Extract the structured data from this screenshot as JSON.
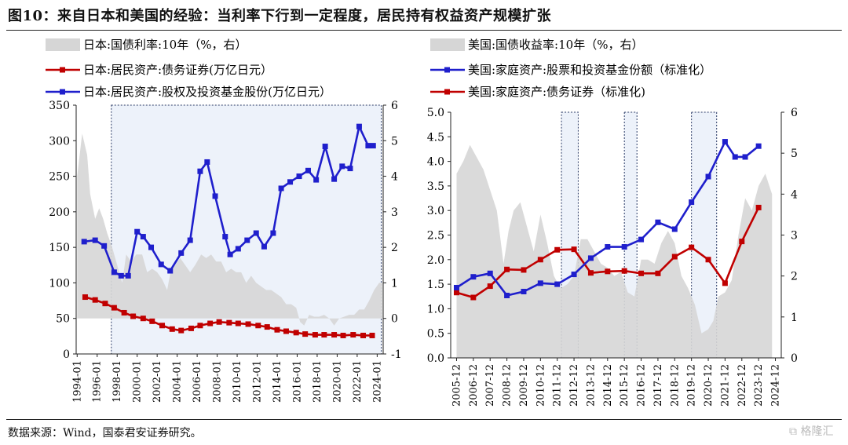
{
  "title": "图10：来自日本和美国的经验：当利率下行到一定程度，居民持有权益资产规模扩张",
  "source": "数据来源：Wind，国泰君安证券研究。",
  "watermark": "格隆汇",
  "colors": {
    "red": "#c00000",
    "blue": "#1f1fcc",
    "gray": "#d6d6d6",
    "highlight": "#edf2fa",
    "dash": "#2a3a66"
  },
  "chart_data": [
    {
      "type": "line",
      "id": "japan",
      "legend": [
        "日本:国债利率:10年（%，右）",
        "日本:居民资产:债务证券(万亿日元）",
        "日本:居民资产:股权及投资基金股份(万亿日元）"
      ],
      "x_ticks": [
        "1994-01",
        "1996-01",
        "1998-01",
        "2000-01",
        "2002-01",
        "2004-01",
        "2006-01",
        "2008-01",
        "2010-01",
        "2012-01",
        "2014-01",
        "2016-01",
        "2018-01",
        "2020-01",
        "2022-01",
        "2024-01"
      ],
      "y_left": {
        "min": 0,
        "max": 350,
        "ticks": [
          0,
          50,
          100,
          150,
          200,
          250,
          300,
          350
        ]
      },
      "y_right": {
        "min": -1,
        "max": 6,
        "ticks": [
          -1,
          0,
          1,
          2,
          3,
          4,
          5,
          6
        ]
      },
      "shaded_period": [
        "1997-06",
        "2024-06"
      ],
      "series": [
        {
          "name": "日本:居民资产:债务证券(万亿日元）",
          "color": "red",
          "axis": "left",
          "x": [
            1994.8,
            1995.8,
            1996.8,
            1997.7,
            1998.7,
            1999.6,
            2000.6,
            2001.5,
            2002.5,
            2003.5,
            2004.4,
            2005.4,
            2006.3,
            2007.3,
            2008.2,
            2009.2,
            2010.1,
            2011.1,
            2012.1,
            2013.0,
            2014.0,
            2014.9,
            2015.9,
            2016.8,
            2017.8,
            2018.7,
            2019.7,
            2020.6,
            2021.6,
            2022.6,
            2023.5
          ],
          "y": [
            80,
            76,
            71,
            65,
            58,
            53,
            50,
            46,
            40,
            35,
            33,
            36,
            40,
            43,
            45,
            44,
            43,
            42,
            40,
            38,
            34,
            32,
            30,
            28,
            27,
            27,
            27,
            26,
            27,
            26,
            26
          ]
        },
        {
          "name": "日本:居民资产:股权及投资基金股份(万亿日元）",
          "color": "blue",
          "axis": "left",
          "x": [
            1994.7,
            1995.8,
            1996.7,
            1997.7,
            1998.4,
            1999.1,
            2000.0,
            2000.6,
            2001.4,
            2002.4,
            2003.3,
            2004.4,
            2005.3,
            2006.3,
            2007.0,
            2007.8,
            2008.8,
            2009.3,
            2010.1,
            2011.0,
            2011.9,
            2012.7,
            2013.6,
            2014.4,
            2015.3,
            2016.2,
            2017.1,
            2017.9,
            2018.8,
            2019.7,
            2020.5,
            2021.3,
            2022.2,
            2023.1,
            2023.6
          ],
          "y": [
            158,
            160,
            152,
            115,
            110,
            110,
            172,
            165,
            150,
            126,
            117,
            142,
            160,
            257,
            270,
            222,
            165,
            140,
            148,
            160,
            170,
            151,
            170,
            233,
            242,
            250,
            258,
            245,
            292,
            246,
            264,
            261,
            320,
            293,
            293
          ]
        },
        {
          "name": "日本:国债利率:10年（%，右）",
          "color": "gray",
          "axis": "right",
          "x": [
            1994,
            1994.5,
            1995,
            1995.3,
            1995.8,
            1996.2,
            1996.6,
            1997,
            1997.5,
            1998,
            1998.5,
            1998.9,
            1999.4,
            1999.9,
            2000.5,
            2001,
            2001.5,
            2002,
            2002.5,
            2003,
            2003.4,
            2003.8,
            2004.3,
            2004.8,
            2005.3,
            2005.8,
            2006.4,
            2006.9,
            2007.4,
            2007.9,
            2008.4,
            2008.9,
            2009.4,
            2009.9,
            2010.4,
            2010.9,
            2011.4,
            2011.9,
            2012.4,
            2012.9,
            2013.4,
            2013.9,
            2014.4,
            2014.9,
            2015.4,
            2015.9,
            2016.3,
            2016.7,
            2017.2,
            2017.7,
            2018.2,
            2018.7,
            2019.2,
            2019.7,
            2020.2,
            2020.7,
            2021.2,
            2021.7,
            2022.2,
            2022.7,
            2023.2,
            2023.7,
            2024.2,
            2024.5
          ],
          "y": [
            4.0,
            5.2,
            4.6,
            3.5,
            2.8,
            3.1,
            2.8,
            2.4,
            2.0,
            1.5,
            1.0,
            1.8,
            1.6,
            1.8,
            1.8,
            1.3,
            1.4,
            1.3,
            1.1,
            0.8,
            1.4,
            1.5,
            1.7,
            1.5,
            1.3,
            1.5,
            1.8,
            1.7,
            1.8,
            1.6,
            1.6,
            1.3,
            1.4,
            1.3,
            1.3,
            1.0,
            1.2,
            1.0,
            0.9,
            0.8,
            0.8,
            0.7,
            0.6,
            0.4,
            0.4,
            0.3,
            -0.1,
            -0.2,
            0.1,
            0.05,
            0.05,
            0.1,
            0.0,
            -0.2,
            0.0,
            0.05,
            0.1,
            0.1,
            0.25,
            0.25,
            0.5,
            0.8,
            1.0,
            1.0
          ]
        }
      ]
    },
    {
      "type": "line",
      "id": "us",
      "legend": [
        "美国:国债收益率:10年（%，右）",
        "美国:家庭资产:股票和投资基金份额（标准化）",
        "美国:家庭资产:债务证券（标准化)"
      ],
      "x_ticks": [
        "2005-12",
        "2006-12",
        "2007-12",
        "2008-12",
        "2009-12",
        "2010-12",
        "2011-12",
        "2012-12",
        "2013-12",
        "2014-12",
        "2015-12",
        "2016-12",
        "2017-12",
        "2018-12",
        "2019-12",
        "2020-12",
        "2021-12",
        "2022-12",
        "2023-12",
        "2024-12"
      ],
      "y_left": {
        "min": 0.0,
        "max": 5.0,
        "ticks": [
          "0.0",
          "0.5",
          "1.0",
          "1.5",
          "2.0",
          "2.5",
          "3.0",
          "3.5",
          "4.0",
          "4.5",
          "5.0"
        ]
      },
      "y_right": {
        "min": 0,
        "max": 6,
        "ticks": [
          0,
          1,
          2,
          3,
          4,
          5,
          6
        ]
      },
      "shaded_periods": [
        [
          "2012-03",
          "2013-03"
        ],
        [
          "2015-12",
          "2016-09"
        ],
        [
          "2019-12",
          "2021-06"
        ]
      ],
      "series": [
        {
          "name": "美国:家庭资产:股票和投资基金份额（标准化）",
          "color": "blue",
          "axis": "left",
          "x": [
            0,
            1,
            2,
            3,
            4,
            5,
            6,
            7,
            8,
            9,
            10,
            11,
            12,
            13,
            14,
            15,
            16,
            16.6,
            17.2,
            18
          ],
          "y": [
            1.43,
            1.65,
            1.72,
            1.27,
            1.35,
            1.52,
            1.5,
            1.7,
            2.03,
            2.26,
            2.26,
            2.41,
            2.76,
            2.62,
            3.17,
            3.69,
            4.4,
            4.09,
            4.09,
            4.31
          ]
        },
        {
          "name": "美国:家庭资产:债务证券（标准化)",
          "color": "red",
          "axis": "left",
          "x": [
            0,
            1,
            2,
            3,
            4,
            5,
            6,
            7,
            8,
            9,
            10,
            11,
            12,
            13,
            14,
            15,
            16,
            17,
            18
          ],
          "y": [
            1.33,
            1.23,
            1.46,
            1.8,
            1.79,
            2.0,
            2.2,
            2.21,
            1.73,
            1.76,
            1.77,
            1.72,
            1.72,
            2.06,
            2.25,
            2.0,
            1.52,
            2.37,
            3.06
          ]
        },
        {
          "name": "美国:国债收益率:10年（%，右）",
          "color": "gray",
          "axis": "right",
          "x": [
            0,
            0.4,
            0.8,
            1.2,
            1.6,
            2.0,
            2.4,
            2.8,
            3.1,
            3.4,
            3.8,
            4.2,
            4.6,
            5.0,
            5.4,
            5.8,
            6.2,
            6.6,
            7.0,
            7.4,
            7.8,
            8.2,
            8.6,
            9.0,
            9.4,
            9.8,
            10.2,
            10.6,
            11.0,
            11.4,
            11.8,
            12.2,
            12.6,
            13.0,
            13.4,
            13.8,
            14.2,
            14.6,
            15.0,
            15.3,
            15.6,
            16.0,
            16.4,
            16.8,
            17.2,
            17.6,
            18.0,
            18.4,
            18.8
          ],
          "y": [
            4.5,
            4.8,
            5.2,
            4.9,
            4.6,
            4.1,
            3.6,
            2.3,
            3.1,
            3.6,
            3.8,
            3.2,
            2.6,
            3.5,
            2.8,
            2.0,
            1.7,
            1.8,
            2.0,
            2.9,
            2.9,
            2.6,
            2.3,
            2.2,
            2.0,
            2.1,
            1.6,
            1.5,
            2.4,
            2.4,
            2.3,
            2.8,
            3.1,
            2.8,
            2.0,
            1.7,
            1.3,
            0.6,
            0.7,
            0.9,
            1.5,
            1.6,
            1.9,
            3.0,
            3.9,
            3.6,
            4.2,
            4.5,
            4.0
          ]
        }
      ]
    }
  ]
}
